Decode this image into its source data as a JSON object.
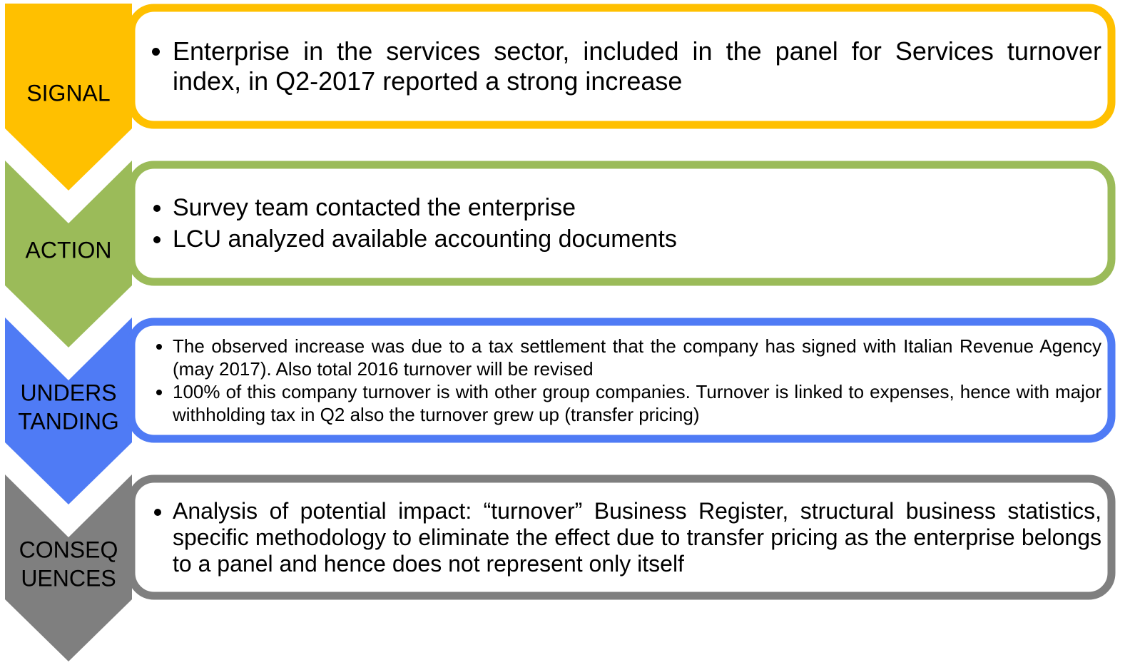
{
  "stages": [
    {
      "label": [
        "SIGNAL"
      ],
      "bullets": [
        "Enterprise in the services sector, included in the panel for Services turnover index, in Q2-2017 reported a strong increase"
      ]
    },
    {
      "label": [
        "ACTION"
      ],
      "bullets": [
        "Survey team contacted the enterprise",
        "LCU analyzed available accounting documents"
      ]
    },
    {
      "label": [
        "UNDERS",
        "TANDING"
      ],
      "bullets": [
        "The observed increase was due to a tax settlement that the company has signed with Italian Revenue Agency (may 2017). Also total 2016 turnover will be revised",
        "100% of this company turnover is with other group companies. Turnover is linked to expenses, hence with major withholding tax in Q2 also the turnover grew up (transfer pricing)"
      ]
    },
    {
      "label": [
        "CONSEQ",
        "UENCES"
      ],
      "bullets": [
        "Analysis of potential impact: “turnover” Business Register, structural business statistics, specific methodology to eliminate the effect due to transfer pricing as the enterprise belongs to a panel and hence does not represent only itself"
      ]
    }
  ]
}
